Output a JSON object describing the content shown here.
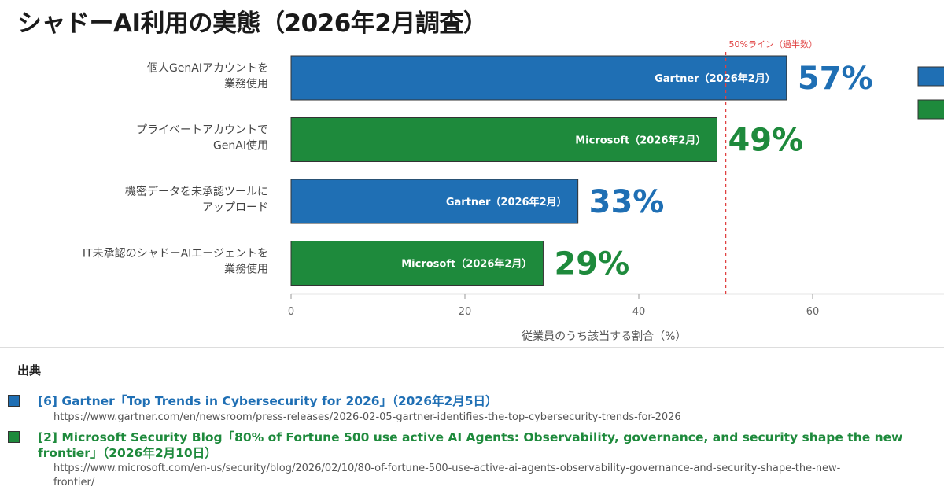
{
  "title": "シャドーAI利用の実態（2026年2月調査）",
  "colors": {
    "gartner": "#1f6fb4",
    "microsoft": "#1e8a3c",
    "reference": "#e04040"
  },
  "chart_data": {
    "type": "bar",
    "orientation": "horizontal",
    "categories": [
      "個人GenAIアカウントを 業務使用",
      "プライベートアカウントで GenAI使用",
      "機密データを未承認ツールに アップロード",
      "IT未承認のシャドーAIエージェントを 業務使用"
    ],
    "category_lines": [
      [
        "個人GenAIアカウントを",
        "業務使用"
      ],
      [
        "プライベートアカウントで",
        "GenAI使用"
      ],
      [
        "機密データを未承認ツールに",
        "アップロード"
      ],
      [
        "IT未承認のシャドーAIエージェントを",
        "業務使用"
      ]
    ],
    "values": [
      57,
      49,
      33,
      29
    ],
    "value_labels": [
      "57%",
      "49%",
      "33%",
      "29%"
    ],
    "bar_labels": [
      "Gartner（2026年2月）",
      "Microsoft（2026年2月）",
      "Gartner（2026年2月）",
      "Microsoft（2026年2月）"
    ],
    "bar_sources": [
      "gartner",
      "microsoft",
      "gartner",
      "microsoft"
    ],
    "xlabel": "従業員のうち該当する割合（%）",
    "ylabel": "",
    "xlim": [
      0,
      75
    ],
    "xticks": [
      0,
      20,
      40,
      60
    ],
    "reference_line": {
      "value": 50,
      "label": "50%ライン（過半数）"
    },
    "grid": false,
    "legend": {
      "placement": "right (cropped)",
      "swatches": [
        "gartner",
        "microsoft"
      ]
    }
  },
  "sources": {
    "heading": "出典",
    "items": [
      {
        "source": "gartner",
        "title_lines": [
          "[6] Gartner「Top Trends in Cybersecurity for 2026」（2026年2月5日）"
        ],
        "url_lines": [
          "https://www.gartner.com/en/newsroom/press-releases/2026-02-05-gartner-identifies-the-top-cybersecurity-trends-for-2026"
        ]
      },
      {
        "source": "microsoft",
        "title_lines": [
          "[2] Microsoft Security Blog「80% of Fortune 500 use active AI Agents: Observability, governance, and security shape the new",
          "frontier」（2026年2月10日）"
        ],
        "url_lines": [
          "https://www.microsoft.com/en-us/security/blog/2026/02/10/80-of-fortune-500-use-active-ai-agents-observability-governance-and-security-shape-the-new-",
          "frontier/"
        ]
      }
    ]
  }
}
